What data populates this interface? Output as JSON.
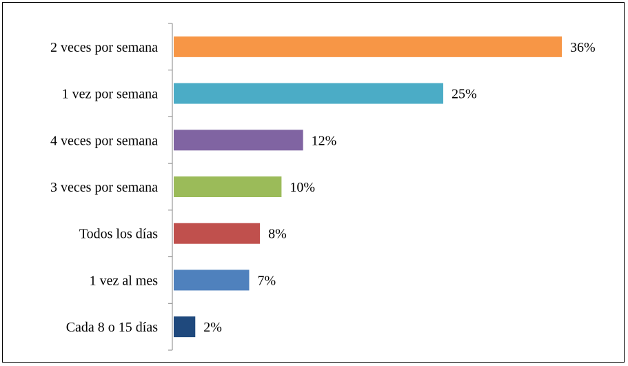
{
  "chart_data": {
    "type": "bar",
    "orientation": "horizontal",
    "categories": [
      "2 veces por semana",
      "1 vez por semana",
      "4 veces por semana",
      "3 veces por semana",
      "Todos los días",
      "1 vez al mes",
      "Cada 8 o 15 días"
    ],
    "values": [
      36,
      25,
      12,
      10,
      8,
      7,
      2
    ],
    "value_labels": [
      "36%",
      "25%",
      "12%",
      "10%",
      "8%",
      "7%",
      "2%"
    ],
    "colors": [
      "#F79646",
      "#4BACC6",
      "#8064A2",
      "#9BBB59",
      "#C0504D",
      "#4F81BD",
      "#1F497D"
    ],
    "xlim": [
      0,
      36
    ],
    "grid": false,
    "title": "",
    "xlabel": "",
    "ylabel": ""
  }
}
